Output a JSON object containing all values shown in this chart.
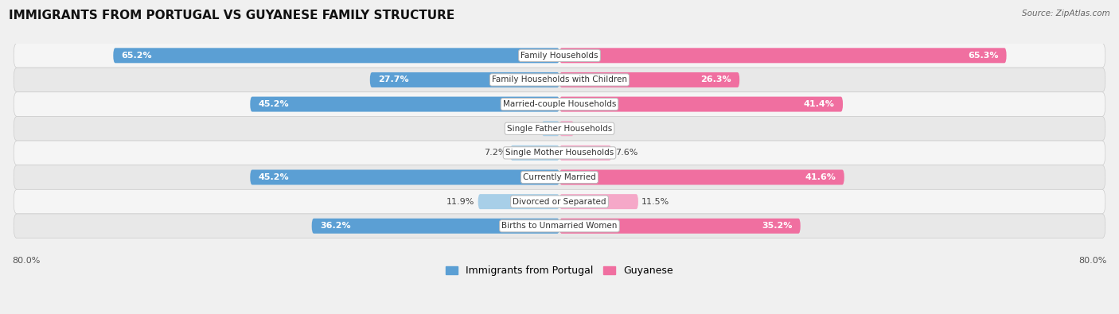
{
  "title": "IMMIGRANTS FROM PORTUGAL VS GUYANESE FAMILY STRUCTURE",
  "source": "Source: ZipAtlas.com",
  "categories": [
    "Family Households",
    "Family Households with Children",
    "Married-couple Households",
    "Single Father Households",
    "Single Mother Households",
    "Currently Married",
    "Divorced or Separated",
    "Births to Unmarried Women"
  ],
  "portugal_values": [
    65.2,
    27.7,
    45.2,
    2.6,
    7.2,
    45.2,
    11.9,
    36.2
  ],
  "guyanese_values": [
    65.3,
    26.3,
    41.4,
    2.1,
    7.6,
    41.6,
    11.5,
    35.2
  ],
  "portugal_color_dark": "#5b9fd4",
  "portugal_color_light": "#a8cfe8",
  "guyanese_color_dark": "#f06fa0",
  "guyanese_color_light": "#f5a8c8",
  "max_value": 80.0,
  "background_color": "#f0f0f0",
  "row_bg_odd": "#f5f5f5",
  "row_bg_even": "#e8e8e8",
  "title_fontsize": 11,
  "label_fontsize": 7.5,
  "value_fontsize": 8,
  "threshold_dark": 15.0
}
